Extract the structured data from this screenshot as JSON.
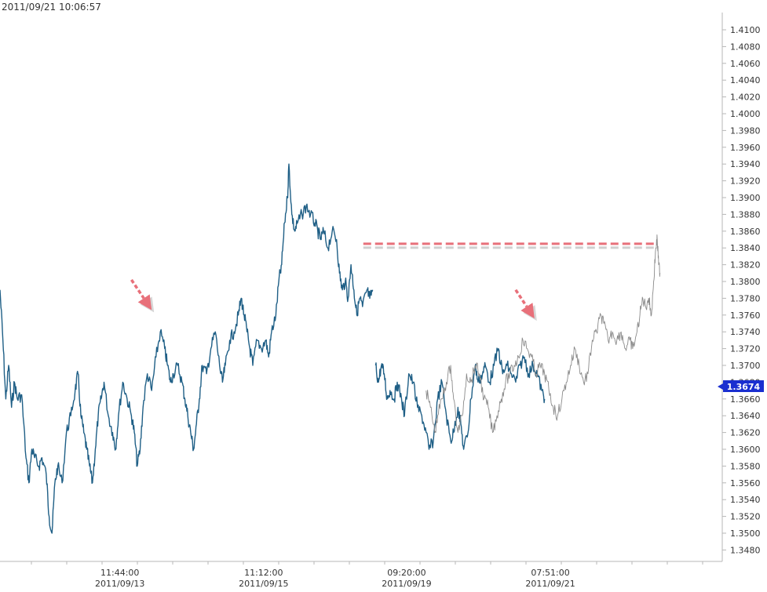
{
  "header": {
    "timestamp": "2011/09/21 10:06:57"
  },
  "colors": {
    "series_primary": "#1f5f86",
    "series_overlay": "#8a8a8a",
    "annotation": "#e8707a",
    "price_tag": "#1a2fd0",
    "axis": "#b7b7b7"
  },
  "chart_data": {
    "type": "line",
    "title": "",
    "ylim": [
      1.3465,
      1.4125
    ],
    "grid": false,
    "y_ticks": [
      "1.4100",
      "1.4080",
      "1.4060",
      "1.4040",
      "1.4020",
      "1.4000",
      "1.3980",
      "1.3960",
      "1.3940",
      "1.3920",
      "1.3900",
      "1.3880",
      "1.3860",
      "1.3840",
      "1.3820",
      "1.3800",
      "1.3780",
      "1.3760",
      "1.3740",
      "1.3720",
      "1.3700",
      "1.3680",
      "1.3660",
      "1.3640",
      "1.3620",
      "1.3600",
      "1.3580",
      "1.3560",
      "1.3540",
      "1.3520",
      "1.3500",
      "1.3480"
    ],
    "x_ticks": [
      {
        "time": "11:44:00",
        "date": "2011/09/13",
        "x": 0.166
      },
      {
        "time": "11:12:00",
        "date": "2011/09/15",
        "x": 0.365
      },
      {
        "time": "09:20:00",
        "date": "2011/09/19",
        "x": 0.563
      },
      {
        "time": "07:51:00",
        "date": "2011/09/21",
        "x": 0.762
      }
    ],
    "current_price": "1.3674",
    "series": [
      {
        "role": "primary",
        "segments": [
          [
            [
              0.0,
              1.379
            ],
            [
              0.004,
              1.373
            ],
            [
              0.008,
              1.366
            ],
            [
              0.012,
              1.37
            ],
            [
              0.016,
              1.365
            ],
            [
              0.02,
              1.368
            ],
            [
              0.024,
              1.366
            ],
            [
              0.03,
              1.3665
            ],
            [
              0.036,
              1.359
            ],
            [
              0.04,
              1.356
            ],
            [
              0.044,
              1.36
            ],
            [
              0.048,
              1.359
            ],
            [
              0.054,
              1.358
            ],
            [
              0.058,
              1.359
            ],
            [
              0.064,
              1.357
            ],
            [
              0.068,
              1.352
            ],
            [
              0.072,
              1.35
            ],
            [
              0.076,
              1.356
            ],
            [
              0.08,
              1.358
            ],
            [
              0.086,
              1.356
            ],
            [
              0.092,
              1.362
            ],
            [
              0.098,
              1.364
            ],
            [
              0.104,
              1.367
            ],
            [
              0.108,
              1.369
            ],
            [
              0.112,
              1.364
            ],
            [
              0.116,
              1.362
            ],
            [
              0.12,
              1.36
            ],
            [
              0.124,
              1.358
            ],
            [
              0.128,
              1.356
            ],
            [
              0.132,
              1.36
            ],
            [
              0.136,
              1.364
            ],
            [
              0.14,
              1.366
            ],
            [
              0.144,
              1.368
            ],
            [
              0.15,
              1.364
            ],
            [
              0.156,
              1.362
            ],
            [
              0.16,
              1.36
            ],
            [
              0.164,
              1.364
            ],
            [
              0.17,
              1.368
            ],
            [
              0.176,
              1.366
            ],
            [
              0.182,
              1.364
            ],
            [
              0.186,
              1.362
            ],
            [
              0.19,
              1.358
            ],
            [
              0.194,
              1.36
            ],
            [
              0.198,
              1.365
            ],
            [
              0.204,
              1.369
            ],
            [
              0.21,
              1.367
            ],
            [
              0.216,
              1.371
            ],
            [
              0.222,
              1.374
            ],
            [
              0.228,
              1.372
            ],
            [
              0.232,
              1.37
            ],
            [
              0.236,
              1.368
            ],
            [
              0.24,
              1.369
            ],
            [
              0.246,
              1.37
            ],
            [
              0.252,
              1.368
            ],
            [
              0.256,
              1.366
            ],
            [
              0.26,
              1.364
            ],
            [
              0.264,
              1.362
            ],
            [
              0.268,
              1.36
            ],
            [
              0.272,
              1.363
            ],
            [
              0.276,
              1.366
            ],
            [
              0.28,
              1.37
            ],
            [
              0.286,
              1.369
            ],
            [
              0.292,
              1.372
            ],
            [
              0.298,
              1.374
            ],
            [
              0.304,
              1.37
            ],
            [
              0.308,
              1.368
            ],
            [
              0.312,
              1.37
            ],
            [
              0.318,
              1.373
            ],
            [
              0.324,
              1.374
            ],
            [
              0.33,
              1.376
            ],
            [
              0.334,
              1.378
            ],
            [
              0.338,
              1.376
            ],
            [
              0.342,
              1.374
            ],
            [
              0.346,
              1.372
            ],
            [
              0.35,
              1.37
            ],
            [
              0.356,
              1.373
            ],
            [
              0.362,
              1.372
            ],
            [
              0.368,
              1.373
            ],
            [
              0.372,
              1.371
            ],
            [
              0.376,
              1.374
            ],
            [
              0.382,
              1.376
            ],
            [
              0.386,
              1.38
            ],
            [
              0.39,
              1.382
            ],
            [
              0.394,
              1.387
            ],
            [
              0.398,
              1.39
            ],
            [
              0.4,
              1.394
            ],
            [
              0.404,
              1.388
            ],
            [
              0.408,
              1.386
            ],
            [
              0.412,
              1.387
            ],
            [
              0.418,
              1.388
            ],
            [
              0.424,
              1.389
            ],
            [
              0.43,
              1.388
            ],
            [
              0.436,
              1.387
            ],
            [
              0.44,
              1.386
            ],
            [
              0.444,
              1.385
            ],
            [
              0.448,
              1.386
            ],
            [
              0.454,
              1.384
            ],
            [
              0.46,
              1.386
            ],
            [
              0.466,
              1.385
            ],
            [
              0.47,
              1.381
            ],
            [
              0.474,
              1.379
            ],
            [
              0.478,
              1.38
            ],
            [
              0.482,
              1.378
            ],
            [
              0.486,
              1.382
            ],
            [
              0.49,
              1.379
            ],
            [
              0.494,
              1.376
            ],
            [
              0.498,
              1.378
            ],
            [
              0.502,
              1.377
            ],
            [
              0.508,
              1.379
            ],
            [
              0.512,
              1.378
            ],
            [
              0.516,
              1.379
            ]
          ],
          [
            [
              0.52,
              1.37
            ],
            [
              0.524,
              1.368
            ],
            [
              0.528,
              1.37
            ],
            [
              0.532,
              1.369
            ],
            [
              0.536,
              1.366
            ],
            [
              0.54,
              1.367
            ],
            [
              0.546,
              1.366
            ],
            [
              0.55,
              1.368
            ],
            [
              0.556,
              1.366
            ],
            [
              0.56,
              1.364
            ],
            [
              0.566,
              1.369
            ],
            [
              0.572,
              1.368
            ],
            [
              0.578,
              1.365
            ],
            [
              0.584,
              1.364
            ],
            [
              0.59,
              1.362
            ],
            [
              0.594,
              1.36
            ],
            [
              0.6,
              1.361
            ],
            [
              0.606,
              1.366
            ],
            [
              0.612,
              1.368
            ],
            [
              0.618,
              1.364
            ],
            [
              0.624,
              1.361
            ],
            [
              0.628,
              1.362
            ],
            [
              0.634,
              1.365
            ],
            [
              0.638,
              1.363
            ],
            [
              0.642,
              1.36
            ],
            [
              0.648,
              1.362
            ],
            [
              0.652,
              1.366
            ],
            [
              0.658,
              1.37
            ],
            [
              0.662,
              1.368
            ],
            [
              0.668,
              1.369
            ],
            [
              0.672,
              1.37
            ],
            [
              0.678,
              1.368
            ],
            [
              0.684,
              1.37
            ],
            [
              0.69,
              1.372
            ],
            [
              0.696,
              1.369
            ],
            [
              0.702,
              1.37
            ],
            [
              0.708,
              1.369
            ],
            [
              0.714,
              1.368
            ],
            [
              0.72,
              1.37
            ],
            [
              0.726,
              1.371
            ],
            [
              0.732,
              1.369
            ],
            [
              0.738,
              1.37
            ],
            [
              0.744,
              1.369
            ],
            [
              0.75,
              1.367
            ],
            [
              0.754,
              1.366
            ]
          ]
        ]
      },
      {
        "role": "overlay",
        "segments": [
          [
            [
              0.59,
              1.367
            ],
            [
              0.596,
              1.365
            ],
            [
              0.602,
              1.362
            ],
            [
              0.606,
              1.364
            ],
            [
              0.612,
              1.366
            ],
            [
              0.618,
              1.368
            ],
            [
              0.624,
              1.37
            ],
            [
              0.628,
              1.366
            ],
            [
              0.634,
              1.362
            ],
            [
              0.64,
              1.364
            ],
            [
              0.646,
              1.369
            ],
            [
              0.652,
              1.368
            ],
            [
              0.658,
              1.37
            ],
            [
              0.664,
              1.369
            ],
            [
              0.67,
              1.366
            ],
            [
              0.676,
              1.365
            ],
            [
              0.682,
              1.362
            ],
            [
              0.688,
              1.364
            ],
            [
              0.694,
              1.366
            ],
            [
              0.7,
              1.368
            ],
            [
              0.706,
              1.369
            ],
            [
              0.712,
              1.37
            ],
            [
              0.718,
              1.371
            ],
            [
              0.724,
              1.373
            ],
            [
              0.73,
              1.372
            ],
            [
              0.736,
              1.371
            ],
            [
              0.742,
              1.369
            ],
            [
              0.748,
              1.37
            ],
            [
              0.754,
              1.369
            ],
            [
              0.76,
              1.367
            ],
            [
              0.766,
              1.365
            ],
            [
              0.772,
              1.364
            ],
            [
              0.778,
              1.366
            ],
            [
              0.784,
              1.368
            ],
            [
              0.79,
              1.37
            ],
            [
              0.796,
              1.372
            ],
            [
              0.802,
              1.37
            ],
            [
              0.808,
              1.368
            ],
            [
              0.814,
              1.369
            ],
            [
              0.82,
              1.373
            ],
            [
              0.826,
              1.374
            ],
            [
              0.832,
              1.376
            ],
            [
              0.836,
              1.375
            ],
            [
              0.842,
              1.373
            ],
            [
              0.848,
              1.374
            ],
            [
              0.854,
              1.373
            ],
            [
              0.86,
              1.374
            ],
            [
              0.866,
              1.372
            ],
            [
              0.872,
              1.373
            ],
            [
              0.876,
              1.372
            ],
            [
              0.882,
              1.374
            ],
            [
              0.886,
              1.376
            ],
            [
              0.89,
              1.378
            ],
            [
              0.894,
              1.377
            ],
            [
              0.898,
              1.378
            ],
            [
              0.902,
              1.376
            ],
            [
              0.905,
              1.38
            ],
            [
              0.908,
              1.384
            ],
            [
              0.91,
              1.385
            ],
            [
              0.912,
              1.382
            ],
            [
              0.914,
              1.381
            ]
          ]
        ]
      }
    ],
    "annotations": [
      {
        "type": "arrow",
        "from": [
          0.182,
          1.3802
        ],
        "to": [
          0.21,
          1.3766
        ]
      },
      {
        "type": "arrow",
        "from": [
          0.714,
          1.379
        ],
        "to": [
          0.74,
          1.3756
        ]
      },
      {
        "type": "hline",
        "y": 1.3845,
        "x_start": 0.503,
        "x_end": 0.906
      }
    ]
  }
}
